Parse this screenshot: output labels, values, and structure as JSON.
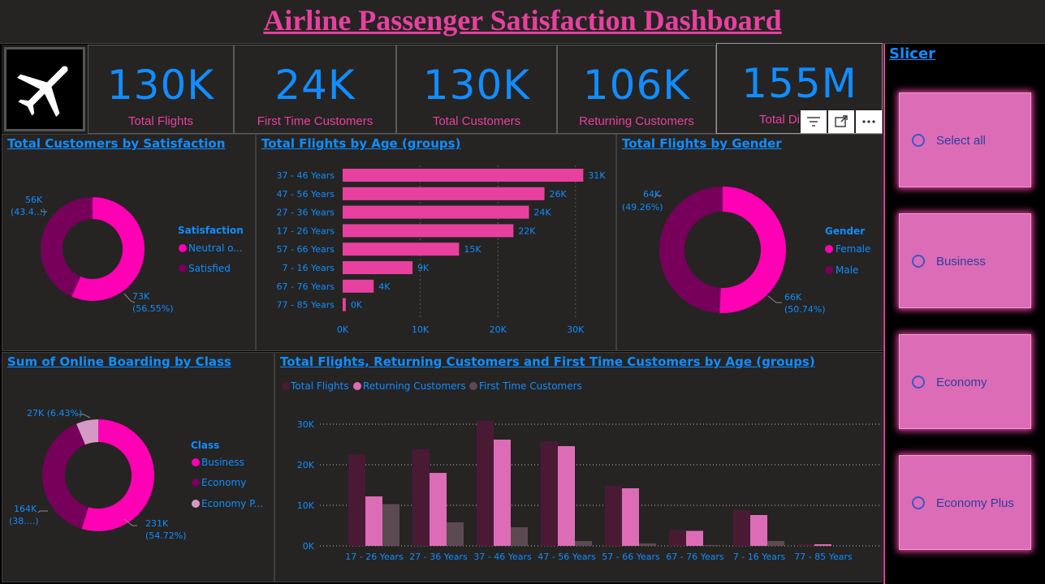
{
  "dashboard": {
    "title": "Airline Passenger Satisfaction Dashboard"
  },
  "logo": {
    "icon": "airplane-icon"
  },
  "kpis": [
    {
      "value": "130K",
      "label": "Total Flights"
    },
    {
      "value": "24K",
      "label": "First Time Customers"
    },
    {
      "value": "130K",
      "label": "Total Customers"
    },
    {
      "value": "106K",
      "label": "Returning Customers"
    },
    {
      "value": "155M",
      "label": "Total Di"
    }
  ],
  "colors": {
    "accent_pink": "#ff00b4",
    "dark_magenta": "#76005a",
    "bar_pink": "#e8409f",
    "kpi_blue": "#118dff",
    "light_pink": "#dd6cb6",
    "dark_maroon": "#4a1a35",
    "grey": "#5c4a52"
  },
  "visual_toolbar": {
    "icons": [
      "filter-icon",
      "focus-mode-icon",
      "more-options-icon"
    ]
  },
  "slicer": {
    "title": "Slicer",
    "items": [
      "Select all",
      "Business",
      "Economy",
      "Economy Plus"
    ]
  },
  "satisfaction_chart": {
    "title": "Total Customers by Satisfaction",
    "legend_title": "Satisfaction",
    "legend_items": [
      "Neutral o...",
      "Satisfied"
    ],
    "label_neutral_value": "73K",
    "label_neutral_pct": "(56.55%)",
    "label_satisfied_value": "56K",
    "label_satisfied_pct": "(43.4...)"
  },
  "age_chart": {
    "title": "Total Flights by Age (groups)",
    "x_ticks": [
      "0K",
      "10K",
      "20K",
      "30K"
    ]
  },
  "gender_chart": {
    "title": "Total Flights by Gender",
    "legend_title": "Gender",
    "legend_items": [
      "Female",
      "Male"
    ],
    "label_female_value": "66K",
    "label_female_pct": "(50.74%)",
    "label_male_value": "64K",
    "label_male_pct": "(49.26%)"
  },
  "boarding_chart": {
    "title": "Sum of Online Boarding by Class",
    "legend_title": "Class",
    "legend_items": [
      "Business",
      "Economy",
      "Economy P..."
    ],
    "label_business": "231K",
    "label_business_pct": "(54.72%)",
    "label_economy": "164K",
    "label_economy_pct": "(38....)",
    "label_economy_plus": "27K (6.43%)"
  },
  "combo_chart": {
    "title": "Total Flights, Returning Customers and First Time Customers by Age (groups)",
    "legend_items": [
      "Total Flights",
      "Returning Customers",
      "First Time Customers"
    ],
    "y_ticks": [
      "0K",
      "10K",
      "20K",
      "30K"
    ]
  },
  "chart_data": [
    {
      "type": "pie",
      "title": "Total Customers by Satisfaction",
      "categories": [
        "Neutral o...",
        "Satisfied"
      ],
      "values": [
        73,
        56
      ],
      "percents": [
        56.55,
        43.4
      ],
      "unit": "K"
    },
    {
      "type": "bar",
      "title": "Total Flights by Age (groups)",
      "categories": [
        "37 - 46 Years",
        "47 - 56 Years",
        "27 - 36 Years",
        "17 - 26 Years",
        "57 - 66 Years",
        "7 - 16 Years",
        "67 - 76 Years",
        "77 - 85 Years"
      ],
      "values": [
        31,
        26,
        24,
        22,
        15,
        9,
        4,
        0.4
      ],
      "data_labels": [
        "31K",
        "26K",
        "24K",
        "22K",
        "15K",
        "9K",
        "4K",
        "0K"
      ],
      "xlim": [
        0,
        32
      ],
      "unit": "K"
    },
    {
      "type": "pie",
      "title": "Total Flights by Gender",
      "categories": [
        "Female",
        "Male"
      ],
      "values": [
        66,
        64
      ],
      "percents": [
        50.74,
        49.26
      ],
      "unit": "K"
    },
    {
      "type": "pie",
      "title": "Sum of Online Boarding by Class",
      "categories": [
        "Business",
        "Economy",
        "Economy P..."
      ],
      "values": [
        231,
        164,
        27
      ],
      "percents": [
        54.72,
        38.85,
        6.43
      ],
      "unit": "K"
    },
    {
      "type": "bar",
      "title": "Total Flights, Returning Customers and First Time Customers by Age (groups)",
      "categories": [
        "17 - 26 Years",
        "27 - 36 Years",
        "37 - 46 Years",
        "47 - 56 Years",
        "57 - 66 Years",
        "67 - 76 Years",
        "7 - 16 Years",
        "77 - 85 Years"
      ],
      "series": [
        {
          "name": "Total Flights",
          "values": [
            22.5,
            23.8,
            30.8,
            25.8,
            14.8,
            3.9,
            8.8,
            0.4
          ]
        },
        {
          "name": "Returning Customers",
          "values": [
            12.2,
            18.0,
            26.2,
            24.6,
            14.2,
            3.7,
            7.6,
            0.4
          ]
        },
        {
          "name": "First Time Customers",
          "values": [
            10.3,
            5.8,
            4.6,
            1.2,
            0.6,
            0.2,
            1.2,
            0.0
          ]
        }
      ],
      "ylim": [
        0,
        30
      ],
      "unit": "K"
    }
  ]
}
